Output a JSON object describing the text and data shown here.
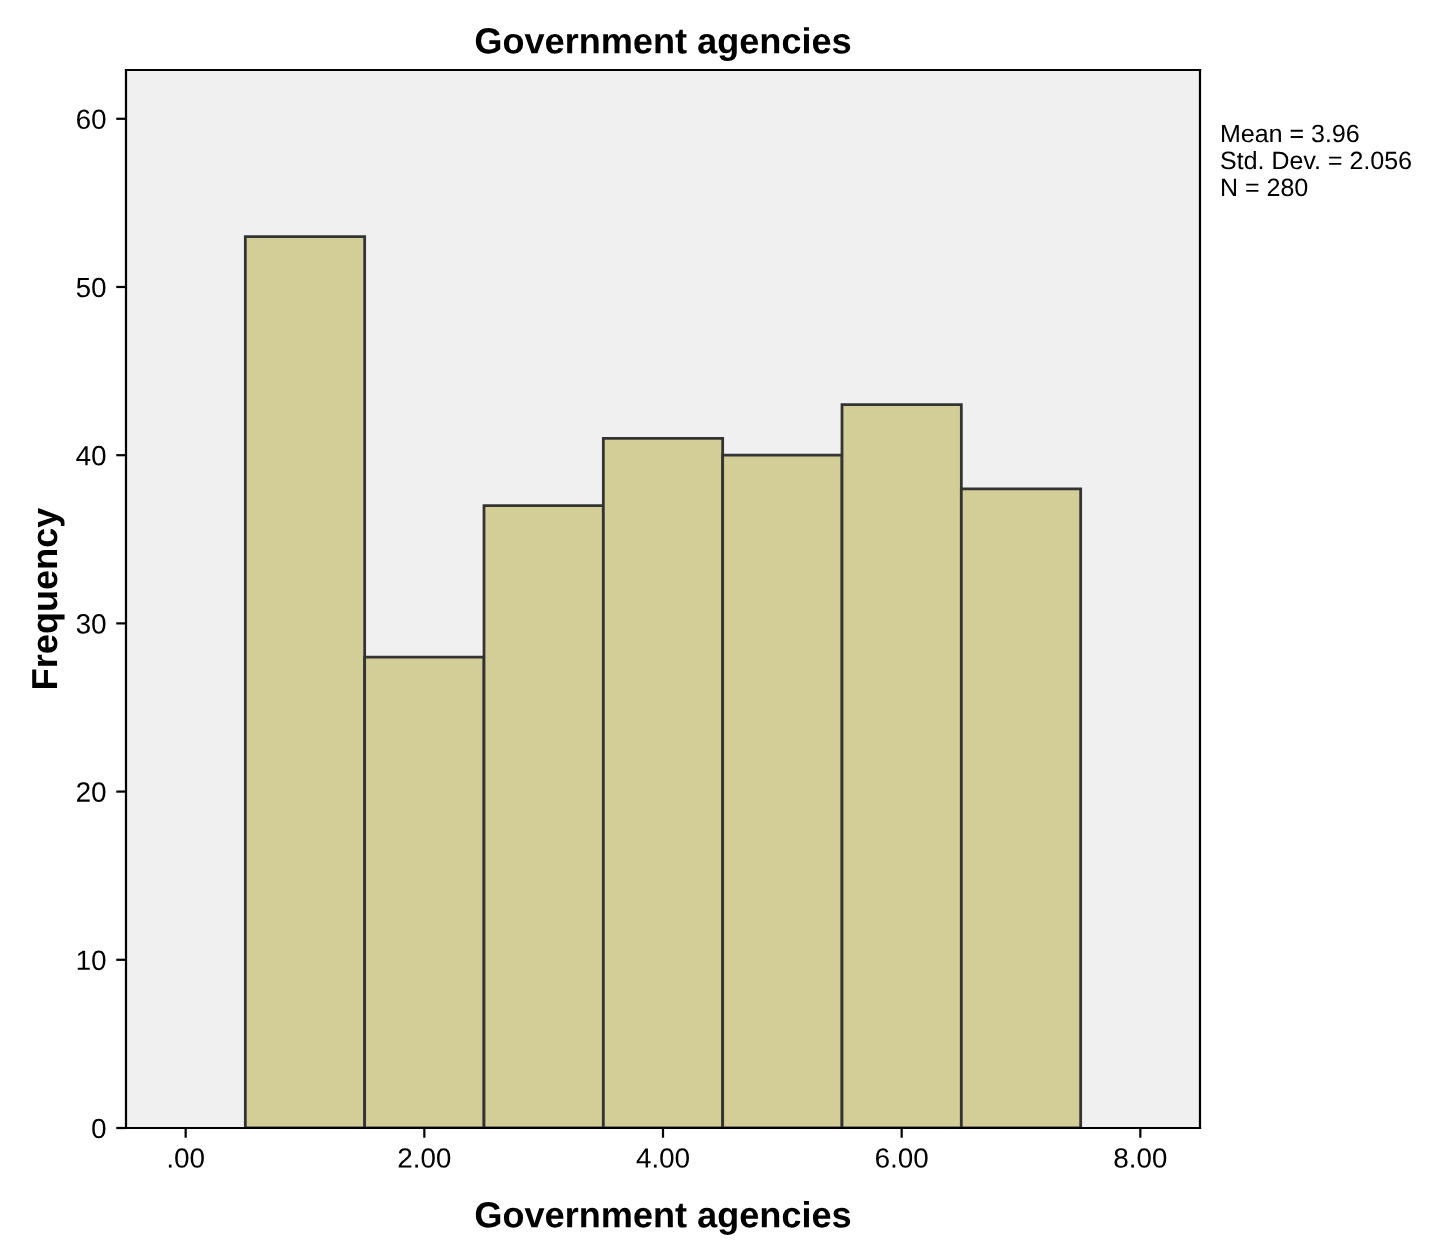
{
  "chart_data": {
    "type": "histogram",
    "title": "Government agencies",
    "xlabel": "Government agencies",
    "ylabel": "Frequency",
    "bins": [
      0.5,
      1.5,
      2.5,
      3.5,
      4.5,
      5.5,
      6.5,
      7.5
    ],
    "values": [
      53,
      28,
      37,
      41,
      40,
      43,
      38
    ],
    "color": "#d3ce97",
    "xlim": [
      -0.5,
      8.5
    ],
    "xticks": [
      {
        "value": 0,
        "label": ".00"
      },
      {
        "value": 2,
        "label": "2.00"
      },
      {
        "value": 4,
        "label": "4.00"
      },
      {
        "value": 6,
        "label": "6.00"
      },
      {
        "value": 8,
        "label": "8.00"
      }
    ],
    "ylim": [
      0,
      62.9
    ],
    "yticks": [
      0,
      10,
      20,
      30,
      40,
      50,
      60
    ],
    "grid": false,
    "annotations": [
      "Mean = 3.96\nStd. Dev. = 2.056\nN = 280"
    ]
  }
}
